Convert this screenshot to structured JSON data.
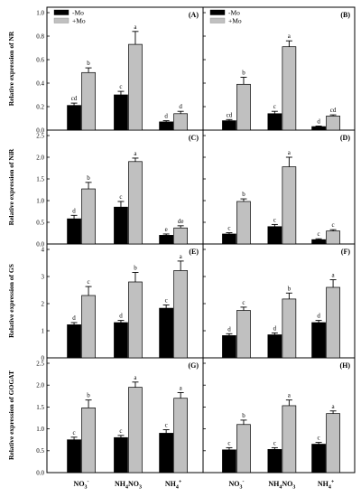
{
  "chart_data": [
    {
      "type": "bar",
      "panel_label": "(A)",
      "ylabel": "Relative expression of NR",
      "ylim": [
        0,
        1.0
      ],
      "yticks": [
        "0.0",
        "0.2",
        "0.4",
        "0.6",
        "0.8",
        "1.0"
      ],
      "series": [
        {
          "name": "-Mo",
          "color": "#000000",
          "values": [
            0.21,
            0.3,
            0.07
          ],
          "errors": [
            0.02,
            0.03,
            0.01
          ],
          "letters": [
            "cd",
            "c",
            "d"
          ]
        },
        {
          "name": "+Mo",
          "color": "#c0c0c0",
          "values": [
            0.49,
            0.73,
            0.14
          ],
          "errors": [
            0.04,
            0.11,
            0.02
          ],
          "letters": [
            "b",
            "a",
            "d"
          ]
        }
      ]
    },
    {
      "type": "bar",
      "panel_label": "(B)",
      "ylim": [
        0,
        1.0
      ],
      "series": [
        {
          "name": "-Mo",
          "color": "#000000",
          "values": [
            0.08,
            0.14,
            0.03
          ],
          "errors": [
            0.01,
            0.02,
            0.005
          ],
          "letters": [
            "cd",
            "c",
            "d"
          ]
        },
        {
          "name": "+Mo",
          "color": "#c0c0c0",
          "values": [
            0.39,
            0.71,
            0.12
          ],
          "errors": [
            0.06,
            0.05,
            0.01
          ],
          "letters": [
            "b",
            "a",
            "cd"
          ]
        }
      ]
    },
    {
      "type": "bar",
      "panel_label": "(C)",
      "ylabel": "Relative expression of NiR",
      "ylim": [
        0,
        2.5
      ],
      "yticks": [
        "0.0",
        "0.5",
        "1.0",
        "1.5",
        "2.0",
        "2.5"
      ],
      "series": [
        {
          "name": "-Mo",
          "color": "#000000",
          "values": [
            0.58,
            0.85,
            0.2
          ],
          "errors": [
            0.08,
            0.13,
            0.03
          ],
          "letters": [
            "d",
            "c",
            "e"
          ]
        },
        {
          "name": "+Mo",
          "color": "#c0c0c0",
          "values": [
            1.27,
            1.9,
            0.37
          ],
          "errors": [
            0.15,
            0.08,
            0.05
          ],
          "letters": [
            "b",
            "a",
            "de"
          ]
        }
      ]
    },
    {
      "type": "bar",
      "panel_label": "(D)",
      "ylim": [
        0,
        2.5
      ],
      "series": [
        {
          "name": "-Mo",
          "color": "#000000",
          "values": [
            0.23,
            0.4,
            0.1
          ],
          "errors": [
            0.03,
            0.05,
            0.02
          ],
          "letters": [
            "c",
            "c",
            "c"
          ]
        },
        {
          "name": "+Mo",
          "color": "#c0c0c0",
          "values": [
            0.98,
            1.78,
            0.3
          ],
          "errors": [
            0.06,
            0.22,
            0.03
          ],
          "letters": [
            "b",
            "a",
            "c"
          ]
        }
      ]
    },
    {
      "type": "bar",
      "panel_label": "(E)",
      "ylabel": "Relative expression of GS",
      "ylim": [
        0,
        4
      ],
      "yticks": [
        "0",
        "1",
        "2",
        "3",
        "4"
      ],
      "series": [
        {
          "name": "-Mo",
          "color": "#000000",
          "values": [
            1.22,
            1.3,
            1.83
          ],
          "errors": [
            0.08,
            0.08,
            0.12
          ],
          "letters": [
            "d",
            "d",
            "c"
          ]
        },
        {
          "name": "+Mo",
          "color": "#c0c0c0",
          "values": [
            2.3,
            2.8,
            3.22
          ],
          "errors": [
            0.33,
            0.35,
            0.35
          ],
          "letters": [
            "c",
            "b",
            "a"
          ]
        }
      ]
    },
    {
      "type": "bar",
      "panel_label": "(F)",
      "ylim": [
        0,
        4
      ],
      "series": [
        {
          "name": "-Mo",
          "color": "#000000",
          "values": [
            0.82,
            0.85,
            1.3
          ],
          "errors": [
            0.07,
            0.07,
            0.08
          ],
          "letters": [
            "d",
            "d",
            "d"
          ]
        },
        {
          "name": "+Mo",
          "color": "#c0c0c0",
          "values": [
            1.75,
            2.17,
            2.6
          ],
          "errors": [
            0.12,
            0.22,
            0.28
          ],
          "letters": [
            "c",
            "b",
            "a"
          ]
        }
      ]
    },
    {
      "type": "bar",
      "panel_label": "(G)",
      "ylabel": "Relative expression of GOGAT",
      "ylim": [
        0,
        2.5
      ],
      "yticks": [
        "0.0",
        "0.5",
        "1.0",
        "1.5",
        "2.0",
        "2.5"
      ],
      "series": [
        {
          "name": "-Mo",
          "color": "#000000",
          "values": [
            0.75,
            0.8,
            0.9
          ],
          "errors": [
            0.06,
            0.05,
            0.08
          ],
          "letters": [
            "c",
            "c",
            "c"
          ]
        },
        {
          "name": "+Mo",
          "color": "#c0c0c0",
          "values": [
            1.48,
            1.95,
            1.7
          ],
          "errors": [
            0.18,
            0.12,
            0.13
          ],
          "letters": [
            "b",
            "a",
            "a"
          ]
        }
      ]
    },
    {
      "type": "bar",
      "panel_label": "(H)",
      "ylim": [
        0,
        2.5
      ],
      "series": [
        {
          "name": "-Mo",
          "color": "#000000",
          "values": [
            0.52,
            0.53,
            0.65
          ],
          "errors": [
            0.05,
            0.04,
            0.04
          ],
          "letters": [
            "c",
            "c",
            "c"
          ]
        },
        {
          "name": "+Mo",
          "color": "#c0c0c0",
          "values": [
            1.1,
            1.53,
            1.35
          ],
          "errors": [
            0.1,
            0.13,
            0.06
          ],
          "letters": [
            "b",
            "a",
            "a"
          ]
        }
      ]
    }
  ],
  "legend": {
    "entries": [
      "-Mo",
      "+Mo"
    ],
    "panels": [
      "(A)",
      "(B)"
    ],
    "placement": "top-left"
  },
  "categories": [
    {
      "main": "NO",
      "sub": "3",
      "sup": "-"
    },
    {
      "main": "NH",
      "sub": "4",
      "rest": "NO",
      "sub2": "3"
    },
    {
      "main": "NH",
      "sub": "4",
      "sup": "+"
    }
  ]
}
